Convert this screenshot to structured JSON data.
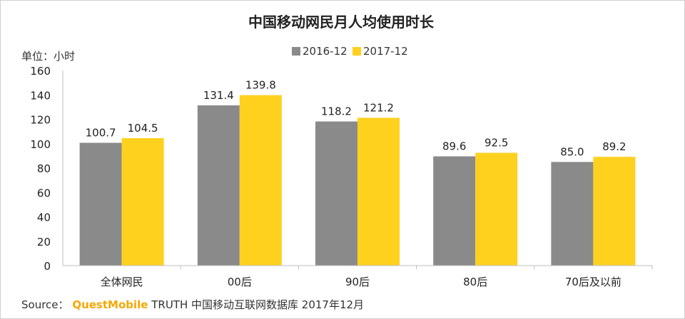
{
  "chart_data": {
    "type": "bar",
    "title": "中国移动网民月人均使用时长",
    "unit_label": "单位：小时",
    "categories": [
      "全体网民",
      "00后",
      "90后",
      "80后",
      "70后及以前"
    ],
    "series": [
      {
        "name": "2016-12",
        "values": [
          100.7,
          131.4,
          118.2,
          89.6,
          85.0
        ],
        "labels": [
          "100.7",
          "131.4",
          "118.2",
          "89.6",
          "85.0"
        ],
        "color": "#8a8a8a"
      },
      {
        "name": "2017-12",
        "values": [
          104.5,
          139.8,
          121.2,
          92.5,
          89.2
        ],
        "labels": [
          "104.5",
          "139.8",
          "121.2",
          "92.5",
          "89.2"
        ],
        "color": "#ffd11f"
      }
    ],
    "yticks": [
      "0",
      "20",
      "40",
      "60",
      "80",
      "100",
      "120",
      "140",
      "160"
    ],
    "ylim": [
      0,
      160
    ],
    "grid": false,
    "legend_position": "top-center"
  },
  "source": {
    "prefix": "Source：",
    "brand": "QuestMobile",
    "rest": "TRUTH 中国移动互联网数据库 2017年12月"
  }
}
